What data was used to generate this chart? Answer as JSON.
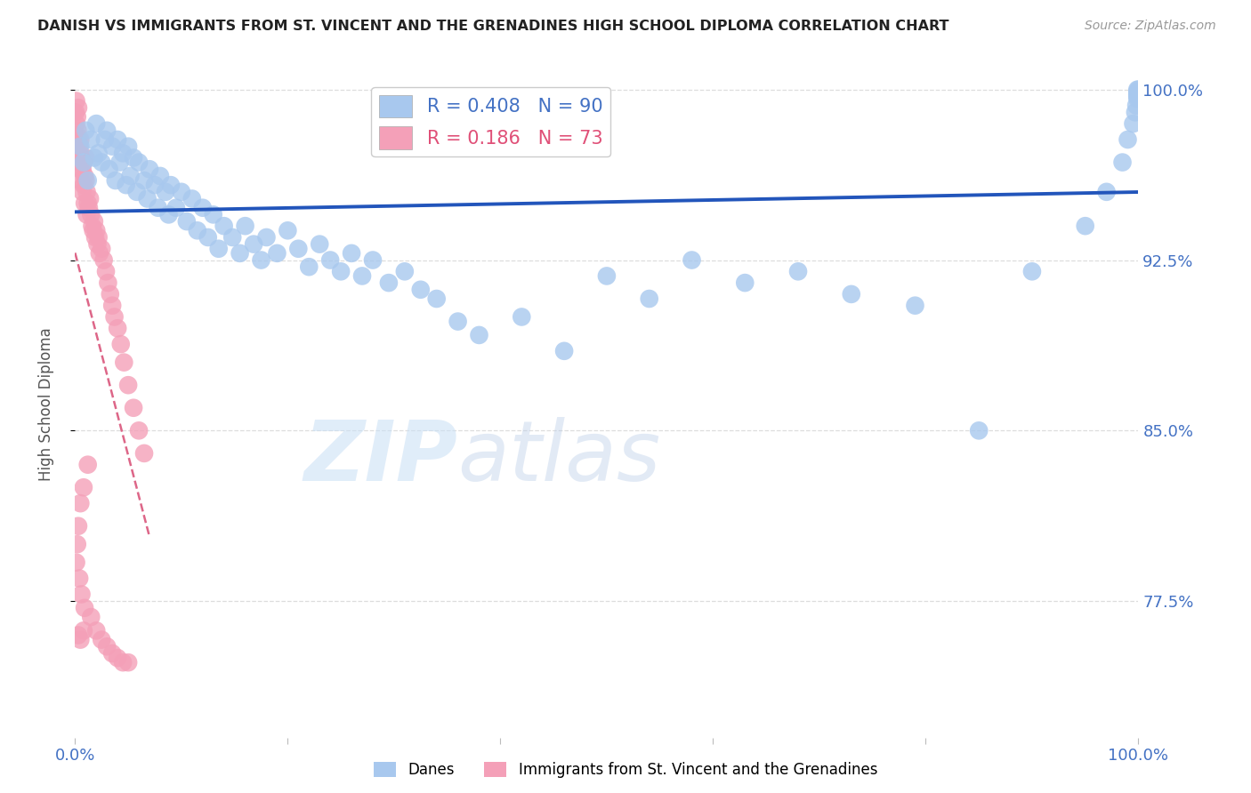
{
  "title": "DANISH VS IMMIGRANTS FROM ST. VINCENT AND THE GRENADINES HIGH SCHOOL DIPLOMA CORRELATION CHART",
  "source": "Source: ZipAtlas.com",
  "ylabel": "High School Diploma",
  "xlim": [
    0.0,
    1.0
  ],
  "ylim": [
    0.715,
    1.008
  ],
  "yticks": [
    0.775,
    0.85,
    0.925,
    1.0
  ],
  "ytick_labels": [
    "77.5%",
    "85.0%",
    "92.5%",
    "100.0%"
  ],
  "xtick_positions": [
    0.0,
    0.2,
    0.4,
    0.6,
    0.8,
    1.0
  ],
  "xtick_labels": [
    "0.0%",
    "",
    "",
    "",
    "",
    "100.0%"
  ],
  "dane_R": 0.408,
  "dane_N": 90,
  "svg_R": 0.186,
  "svg_N": 73,
  "dane_color": "#a8c8ee",
  "svg_color": "#f4a0b8",
  "trend_blue": "#2255bb",
  "trend_pink": "#dd6688",
  "legend_blue_label": "Danes",
  "legend_pink_label": "Immigrants from St. Vincent and the Grenadines",
  "watermark_left": "ZIP",
  "watermark_right": "atlas",
  "background_color": "#ffffff",
  "grid_color": "#dddddd",
  "axis_label_color": "#4472c4",
  "title_color": "#222222",
  "dane_x": [
    0.005,
    0.008,
    0.01,
    0.012,
    0.015,
    0.018,
    0.02,
    0.022,
    0.025,
    0.028,
    0.03,
    0.032,
    0.035,
    0.038,
    0.04,
    0.042,
    0.045,
    0.048,
    0.05,
    0.052,
    0.055,
    0.058,
    0.06,
    0.065,
    0.068,
    0.07,
    0.075,
    0.078,
    0.08,
    0.085,
    0.088,
    0.09,
    0.095,
    0.1,
    0.105,
    0.11,
    0.115,
    0.12,
    0.125,
    0.13,
    0.135,
    0.14,
    0.148,
    0.155,
    0.16,
    0.168,
    0.175,
    0.18,
    0.19,
    0.2,
    0.21,
    0.22,
    0.23,
    0.24,
    0.25,
    0.26,
    0.27,
    0.28,
    0.295,
    0.31,
    0.325,
    0.34,
    0.36,
    0.38,
    0.42,
    0.46,
    0.5,
    0.54,
    0.58,
    0.63,
    0.68,
    0.73,
    0.79,
    0.85,
    0.9,
    0.95,
    0.97,
    0.985,
    0.99,
    0.995,
    0.997,
    0.998,
    0.999,
    0.999,
    0.999,
    0.999,
    0.999,
    0.999,
    0.999,
    1.0
  ],
  "dane_y": [
    0.975,
    0.968,
    0.982,
    0.96,
    0.978,
    0.97,
    0.985,
    0.972,
    0.968,
    0.978,
    0.982,
    0.965,
    0.975,
    0.96,
    0.978,
    0.968,
    0.972,
    0.958,
    0.975,
    0.962,
    0.97,
    0.955,
    0.968,
    0.96,
    0.952,
    0.965,
    0.958,
    0.948,
    0.962,
    0.955,
    0.945,
    0.958,
    0.948,
    0.955,
    0.942,
    0.952,
    0.938,
    0.948,
    0.935,
    0.945,
    0.93,
    0.94,
    0.935,
    0.928,
    0.94,
    0.932,
    0.925,
    0.935,
    0.928,
    0.938,
    0.93,
    0.922,
    0.932,
    0.925,
    0.92,
    0.928,
    0.918,
    0.925,
    0.915,
    0.92,
    0.912,
    0.908,
    0.898,
    0.892,
    0.9,
    0.885,
    0.918,
    0.908,
    0.925,
    0.915,
    0.92,
    0.91,
    0.905,
    0.85,
    0.92,
    0.94,
    0.955,
    0.968,
    0.978,
    0.985,
    0.99,
    0.993,
    0.996,
    0.997,
    0.998,
    0.998,
    0.999,
    0.999,
    1.0,
    1.0
  ],
  "svg_x": [
    0.0005,
    0.001,
    0.001,
    0.0015,
    0.002,
    0.002,
    0.0025,
    0.003,
    0.003,
    0.0035,
    0.004,
    0.004,
    0.0045,
    0.005,
    0.005,
    0.006,
    0.006,
    0.007,
    0.007,
    0.008,
    0.008,
    0.009,
    0.009,
    0.01,
    0.01,
    0.011,
    0.011,
    0.012,
    0.013,
    0.014,
    0.015,
    0.016,
    0.017,
    0.018,
    0.019,
    0.02,
    0.021,
    0.022,
    0.023,
    0.025,
    0.027,
    0.029,
    0.031,
    0.033,
    0.035,
    0.037,
    0.04,
    0.043,
    0.046,
    0.05,
    0.055,
    0.06,
    0.065,
    0.012,
    0.008,
    0.005,
    0.003,
    0.002,
    0.001,
    0.004,
    0.006,
    0.009,
    0.015,
    0.02,
    0.025,
    0.03,
    0.035,
    0.04,
    0.045,
    0.05,
    0.008,
    0.003,
    0.005
  ],
  "svg_y": [
    0.99,
    0.985,
    0.995,
    0.98,
    0.988,
    0.975,
    0.982,
    0.978,
    0.992,
    0.97,
    0.975,
    0.968,
    0.972,
    0.978,
    0.965,
    0.97,
    0.96,
    0.965,
    0.955,
    0.968,
    0.958,
    0.962,
    0.95,
    0.96,
    0.97,
    0.955,
    0.945,
    0.95,
    0.948,
    0.952,
    0.945,
    0.94,
    0.938,
    0.942,
    0.935,
    0.938,
    0.932,
    0.935,
    0.928,
    0.93,
    0.925,
    0.92,
    0.915,
    0.91,
    0.905,
    0.9,
    0.895,
    0.888,
    0.88,
    0.87,
    0.86,
    0.85,
    0.84,
    0.835,
    0.825,
    0.818,
    0.808,
    0.8,
    0.792,
    0.785,
    0.778,
    0.772,
    0.768,
    0.762,
    0.758,
    0.755,
    0.752,
    0.75,
    0.748,
    0.748,
    0.762,
    0.76,
    0.758
  ]
}
